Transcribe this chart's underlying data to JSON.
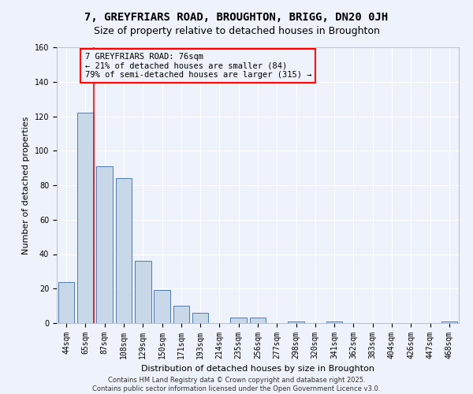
{
  "title": "7, GREYFRIARS ROAD, BROUGHTON, BRIGG, DN20 0JH",
  "subtitle": "Size of property relative to detached houses in Broughton",
  "xlabel": "Distribution of detached houses by size in Broughton",
  "ylabel": "Number of detached properties",
  "bar_color": "#c8d8e8",
  "bar_edge_color": "#4a7ab5",
  "red_line_x": 1.425,
  "categories": [
    "44sqm",
    "65sqm",
    "87sqm",
    "108sqm",
    "129sqm",
    "150sqm",
    "171sqm",
    "193sqm",
    "214sqm",
    "235sqm",
    "256sqm",
    "277sqm",
    "298sqm",
    "320sqm",
    "341sqm",
    "362sqm",
    "383sqm",
    "404sqm",
    "426sqm",
    "447sqm",
    "468sqm"
  ],
  "values": [
    24,
    122,
    91,
    84,
    36,
    19,
    10,
    6,
    0,
    3,
    3,
    0,
    1,
    0,
    1,
    0,
    0,
    0,
    0,
    0,
    1
  ],
  "ylim": [
    0,
    160
  ],
  "yticks": [
    0,
    20,
    40,
    60,
    80,
    100,
    120,
    140,
    160
  ],
  "annotation_box_text": "7 GREYFRIARS ROAD: 76sqm\n← 21% of detached houses are smaller (84)\n79% of semi-detached houses are larger (315) →",
  "footer_text": "Contains HM Land Registry data © Crown copyright and database right 2025.\nContains public sector information licensed under the Open Government Licence v3.0.",
  "background_color": "#eef2fb",
  "grid_color": "#ffffff",
  "title_fontsize": 10,
  "subtitle_fontsize": 9,
  "ylabel_fontsize": 8,
  "xlabel_fontsize": 8,
  "tick_fontsize": 7,
  "annotation_fontsize": 7.5,
  "footer_fontsize": 6
}
